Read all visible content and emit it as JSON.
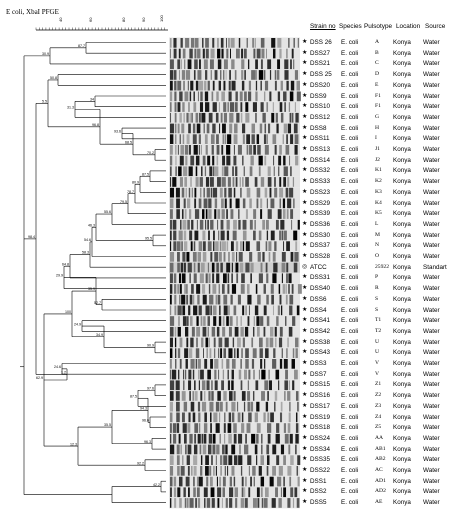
{
  "title": "E coli, XbaI PFGE",
  "scale": {
    "ticks": [
      "40",
      "60",
      "80",
      "90",
      "100"
    ]
  },
  "headers": {
    "strain": "Strain no",
    "species": "Species",
    "pulsotype": "Pulsotype",
    "location": "Location",
    "source": "Source"
  },
  "rows": [
    {
      "mark": "★",
      "strain": "DSS 26",
      "species": "E. coli",
      "pulsotype": "A",
      "location": "Konya",
      "source": "Water"
    },
    {
      "mark": "★",
      "strain": "DSS27",
      "species": "E. coli",
      "pulsotype": "B",
      "location": "Konya",
      "source": "Water"
    },
    {
      "mark": "★",
      "strain": "DSS21",
      "species": "E. coli",
      "pulsotype": "C",
      "location": "Konya",
      "source": "Water"
    },
    {
      "mark": "★",
      "strain": "DSS 25",
      "species": "E. coli",
      "pulsotype": "D",
      "location": "Konya",
      "source": "Water"
    },
    {
      "mark": "★",
      "strain": "DSS20",
      "species": "E. coli",
      "pulsotype": "E",
      "location": "Konya",
      "source": "Water"
    },
    {
      "mark": "★",
      "strain": "DSS9",
      "species": "E. coli",
      "pulsotype": "F1",
      "location": "Konya",
      "source": "Water"
    },
    {
      "mark": "★",
      "strain": "DSS10",
      "species": "E. coli",
      "pulsotype": "F1",
      "location": "Konya",
      "source": "Water"
    },
    {
      "mark": "★",
      "strain": "DSS12",
      "species": "E. coli",
      "pulsotype": "G",
      "location": "Konya",
      "source": "Water"
    },
    {
      "mark": "★",
      "strain": "DSS8",
      "species": "E. coli",
      "pulsotype": "H",
      "location": "Konya",
      "source": "Water"
    },
    {
      "mark": "★",
      "strain": "DSS11",
      "species": "E. coli",
      "pulsotype": "I",
      "location": "Konya",
      "source": "Water"
    },
    {
      "mark": "★",
      "strain": "DSS13",
      "species": "E. coli",
      "pulsotype": "J1",
      "location": "Konya",
      "source": "Water"
    },
    {
      "mark": "★",
      "strain": "DSS14",
      "species": "E. coli",
      "pulsotype": "J2",
      "location": "Konya",
      "source": "Water"
    },
    {
      "mark": "★",
      "strain": "DSS32",
      "species": "E. coli",
      "pulsotype": "K1",
      "location": "Konya",
      "source": "Water"
    },
    {
      "mark": "★",
      "strain": "DSS33",
      "species": "E. coli",
      "pulsotype": "K2",
      "location": "Konya",
      "source": "Water"
    },
    {
      "mark": "★",
      "strain": "DSS23",
      "species": "E. coli",
      "pulsotype": "K3",
      "location": "Konya",
      "source": "Water"
    },
    {
      "mark": "★",
      "strain": "DSS29",
      "species": "E. coli",
      "pulsotype": "K4",
      "location": "Konya",
      "source": "Water"
    },
    {
      "mark": "★",
      "strain": "DSS39",
      "species": "E. coli",
      "pulsotype": "K5",
      "location": "Konya",
      "source": "Water"
    },
    {
      "mark": "★",
      "strain": "DSS36",
      "species": "E. coli",
      "pulsotype": "L",
      "location": "Konya",
      "source": "Water"
    },
    {
      "mark": "★",
      "strain": "DSS30",
      "species": "E. coli",
      "pulsotype": "M",
      "location": "Konya",
      "source": "Water"
    },
    {
      "mark": "★",
      "strain": "DSS37",
      "species": "E. coli",
      "pulsotype": "N",
      "location": "Konya",
      "source": "Water"
    },
    {
      "mark": "★",
      "strain": "DSS28",
      "species": "E. coli",
      "pulsotype": "O",
      "location": "Konya",
      "source": "Water"
    },
    {
      "mark": "◎",
      "strain": "ATCC",
      "species": "E. coli",
      "pulsotype": "25922",
      "location": "Konya",
      "source": "Standart"
    },
    {
      "mark": "★",
      "strain": "DSS31",
      "species": "E. coli",
      "pulsotype": "P",
      "location": "Konya",
      "source": "Water"
    },
    {
      "mark": "★",
      "strain": "DSS40",
      "species": "E. coli",
      "pulsotype": "R",
      "location": "Konya",
      "source": "Water"
    },
    {
      "mark": "★",
      "strain": "DSS6",
      "species": "E. coli",
      "pulsotype": "S",
      "location": "Konya",
      "source": "Water"
    },
    {
      "mark": "★",
      "strain": "DSS4",
      "species": "E. coli",
      "pulsotype": "S",
      "location": "Konya",
      "source": "Water"
    },
    {
      "mark": "★",
      "strain": "DSS41",
      "species": "E. coli",
      "pulsotype": "T1",
      "location": "Konya",
      "source": "Water"
    },
    {
      "mark": "★",
      "strain": "DSS42",
      "species": "E. coli",
      "pulsotype": "T2",
      "location": "Konya",
      "source": "Water"
    },
    {
      "mark": "★",
      "strain": "DSS38",
      "species": "E. coli",
      "pulsotype": "U",
      "location": "Konya",
      "source": "Water"
    },
    {
      "mark": "★",
      "strain": "DSS43",
      "species": "E. coli",
      "pulsotype": "U",
      "location": "Konya",
      "source": "Water"
    },
    {
      "mark": "★",
      "strain": "DSS3",
      "species": "E. coli",
      "pulsotype": "V",
      "location": "Konya",
      "source": "Water"
    },
    {
      "mark": "★",
      "strain": "DSS7",
      "species": "E. coli",
      "pulsotype": "V",
      "location": "Konya",
      "source": "Water"
    },
    {
      "mark": "★",
      "strain": "DSS15",
      "species": "E. coli",
      "pulsotype": "Z1",
      "location": "Konya",
      "source": "Water"
    },
    {
      "mark": "★",
      "strain": "DSS16",
      "species": "E. coli",
      "pulsotype": "Z2",
      "location": "Konya",
      "source": "Water"
    },
    {
      "mark": "★",
      "strain": "DSS17",
      "species": "E. coli",
      "pulsotype": "Z3",
      "location": "Konya",
      "source": "Water"
    },
    {
      "mark": "★",
      "strain": "DSS19",
      "species": "E. coli",
      "pulsotype": "Z4",
      "location": "Konya",
      "source": "Water"
    },
    {
      "mark": "★",
      "strain": "DSS18",
      "species": "E. coli",
      "pulsotype": "Z5",
      "location": "Konya",
      "source": "Water"
    },
    {
      "mark": "★",
      "strain": "DSS24",
      "species": "E. coli",
      "pulsotype": "AA",
      "location": "Konya",
      "source": "Water"
    },
    {
      "mark": "★",
      "strain": "DSS34",
      "species": "E. coli",
      "pulsotype": "AB1",
      "location": "Konya",
      "source": "Water"
    },
    {
      "mark": "★",
      "strain": "DSS35",
      "species": "E. coli",
      "pulsotype": "AB2",
      "location": "Konya",
      "source": "Water"
    },
    {
      "mark": "★",
      "strain": "DSS22",
      "species": "E. coli",
      "pulsotype": "AC",
      "location": "Konya",
      "source": "Water"
    },
    {
      "mark": "★",
      "strain": "DSS1",
      "species": "E. coli",
      "pulsotype": "AD1",
      "location": "Konya",
      "source": "Water"
    },
    {
      "mark": "★",
      "strain": "DSS2",
      "species": "E. coli",
      "pulsotype": "AD2",
      "location": "Konya",
      "source": "Water"
    },
    {
      "mark": "★",
      "strain": "DSS5",
      "species": "E. coli",
      "pulsotype": "AE",
      "location": "Konya",
      "source": "Water"
    }
  ],
  "dendrogram": {
    "node_labels": [
      "87.7",
      "30.9",
      "50.8",
      "34",
      "31.3",
      "93.6",
      "70.2",
      "68.5",
      "96.8",
      "87.5",
      "80.9",
      "78.7",
      "79.5",
      "55.6",
      "95.5",
      "46.3",
      "54.6",
      "58.3",
      "64.8",
      "5.5",
      "29.9",
      "52.7",
      "35.9",
      "24.9",
      "90.9",
      "34.9",
      "100",
      "24.6",
      "97.6",
      "87.5",
      "96.6",
      "94.3",
      "96.3",
      "35.5",
      "92.2",
      "12.3",
      "62.9",
      "1.2",
      "98.4",
      "42.2"
    ]
  }
}
